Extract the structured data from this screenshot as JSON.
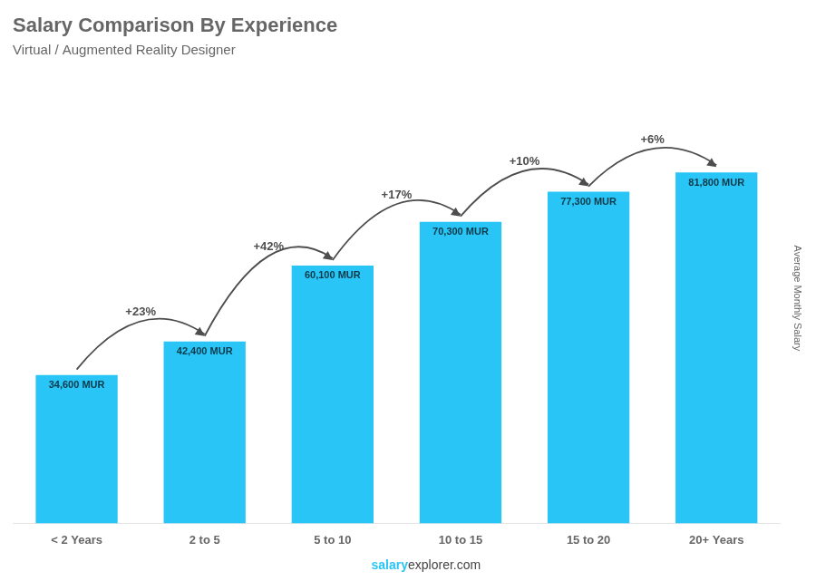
{
  "chart_data": {
    "type": "bar",
    "title": "Salary Comparison By Experience",
    "subtitle": "Virtual / Augmented Reality Designer",
    "categories": [
      "< 2 Years",
      "2 to 5",
      "5 to 10",
      "10 to 15",
      "15 to 20",
      "20+ Years"
    ],
    "values": [
      34600,
      42400,
      60100,
      70300,
      77300,
      81800
    ],
    "value_labels": [
      "34,600 MUR",
      "42,400 MUR",
      "60,100 MUR",
      "70,300 MUR",
      "77,300 MUR",
      "81,800 MUR"
    ],
    "data_labels": true,
    "color": "#29C5F6",
    "ylabel": "Average Monthly Salary",
    "ylim": [
      0,
      105000
    ],
    "yticks": [],
    "tick_labels": "x",
    "grid": false,
    "annotations": [
      "+23%",
      "+42%",
      "+17%",
      "+10%",
      "+6%"
    ],
    "footer": [
      "salary",
      "explorer.com"
    ]
  }
}
